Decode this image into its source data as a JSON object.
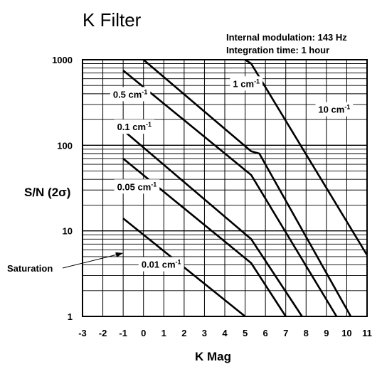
{
  "chart_data": {
    "type": "line",
    "title": "K Filter",
    "notes": [
      "Internal modulation: 143 Hz",
      "Integration time: 1 hour"
    ],
    "xlabel": "K Mag",
    "ylabel": "S/N (2σ)",
    "xlim": [
      -3,
      11
    ],
    "ylim": [
      1,
      1000
    ],
    "yscale": "log",
    "grid": true,
    "x_ticks": [
      "-3",
      "-2",
      "-1",
      "0",
      "1",
      "2",
      "3",
      "4",
      "5",
      "6",
      "7",
      "8",
      "9",
      "10",
      "11"
    ],
    "y_ticks": [
      "1",
      "10",
      "100",
      "1000"
    ],
    "series": [
      {
        "name": "10 cm-1",
        "label_base": "10 cm",
        "label_sup": "-1",
        "x": [
          5.0,
          5.3,
          11.0
        ],
        "y": [
          1000,
          900,
          5.2
        ]
      },
      {
        "name": "1 cm-1",
        "label_base": "1 cm",
        "label_sup": "-1",
        "x": [
          0.0,
          5.3,
          5.7,
          10.2
        ],
        "y": [
          1000,
          85,
          80,
          1
        ]
      },
      {
        "name": "0.5 cm-1",
        "label_base": "0.5 cm",
        "label_sup": "-1",
        "x": [
          -1.0,
          5.3,
          9.5
        ],
        "y": [
          750,
          45,
          1
        ]
      },
      {
        "name": "0.1 cm-1",
        "label_base": "0.1 cm",
        "label_sup": "-1",
        "x": [
          -1.0,
          5.3,
          7.8
        ],
        "y": [
          150,
          8,
          1
        ]
      },
      {
        "name": "0.05 cm-1",
        "label_base": "0.05 cm",
        "label_sup": "-1",
        "x": [
          -1.0,
          5.3,
          7.0
        ],
        "y": [
          70,
          4.2,
          1
        ]
      },
      {
        "name": "0.01 cm-1",
        "label_base": "0.01 cm",
        "label_sup": "-1",
        "x": [
          -1.0,
          5.0
        ],
        "y": [
          14,
          1
        ]
      }
    ],
    "annotations": [
      {
        "text": "Saturation",
        "target_x": -1.0,
        "target_y": 5.5
      }
    ]
  }
}
